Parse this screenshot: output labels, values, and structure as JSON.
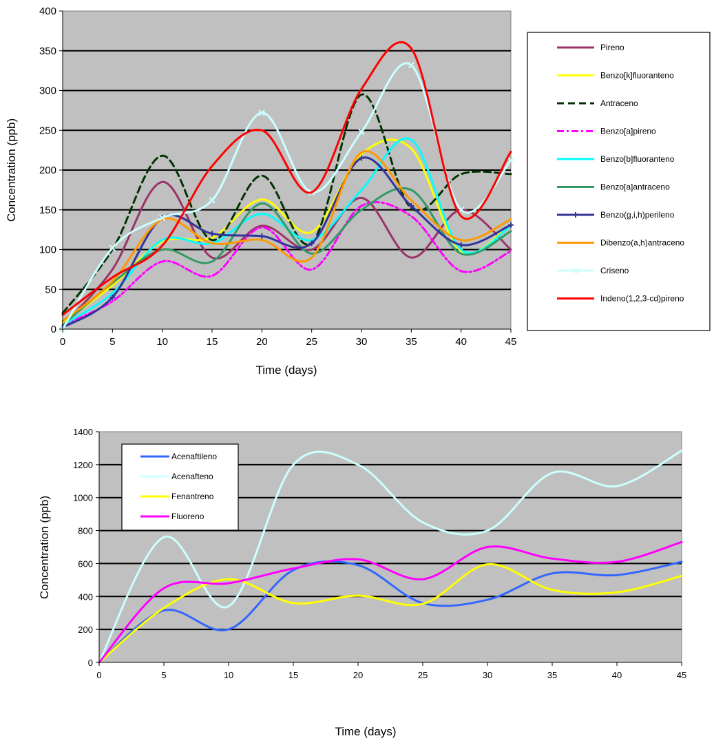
{
  "chart_data": [
    {
      "type": "line",
      "title": "",
      "xlabel": "Time (days)",
      "ylabel": "Concentration (ppb)",
      "xlim": [
        0,
        45
      ],
      "ylim": [
        0,
        400
      ],
      "x_ticks": [
        "0",
        "5",
        "10",
        "15",
        "20",
        "25",
        "30",
        "35",
        "40",
        "45"
      ],
      "y_ticks": [
        "0",
        "50",
        "100",
        "150",
        "200",
        "250",
        "300",
        "350",
        "400"
      ],
      "grid": true,
      "legend_position": "right",
      "plot_background": "#c0c0c0",
      "x": [
        0,
        5,
        10,
        15,
        20,
        25,
        30,
        35,
        40,
        45
      ],
      "series": [
        {
          "name": "Pireno",
          "color": "#993366",
          "dash": "solid",
          "marker": "none",
          "values": [
            5,
            75,
            185,
            90,
            130,
            100,
            165,
            90,
            150,
            100
          ]
        },
        {
          "name": "Benzo[k]fluoranteno",
          "color": "#ffff00",
          "dash": "solid",
          "marker": "none",
          "values": [
            8,
            55,
            110,
            115,
            163,
            122,
            220,
            227,
            98,
            133
          ]
        },
        {
          "name": "Antraceno",
          "color": "#003300",
          "dash": "dash",
          "marker": "none",
          "values": [
            20,
            100,
            218,
            112,
            193,
            108,
            295,
            152,
            195,
            195
          ]
        },
        {
          "name": "Benzo[a]pireno",
          "color": "#ff00ff",
          "dash": "dashdot",
          "marker": "none",
          "values": [
            5,
            35,
            85,
            67,
            128,
            75,
            155,
            142,
            73,
            98
          ]
        },
        {
          "name": "Benzo[b]fluoranteno",
          "color": "#00ffff",
          "dash": "solid",
          "marker": "none",
          "values": [
            5,
            45,
            112,
            108,
            145,
            112,
            175,
            238,
            100,
            130
          ]
        },
        {
          "name": "Benzo[a]antraceno",
          "color": "#339966",
          "dash": "solid",
          "marker": "none",
          "values": [
            5,
            58,
            100,
            85,
            158,
            95,
            150,
            175,
            95,
            123
          ]
        },
        {
          "name": "Benzo(g,i,h)perileno",
          "color": "#333399",
          "dash": "solid",
          "marker": "plus",
          "values": [
            2,
            40,
            140,
            120,
            117,
            108,
            215,
            155,
            106,
            131
          ]
        },
        {
          "name": "Dibenzo(a,h)antraceno",
          "color": "#ff9900",
          "dash": "solid",
          "marker": "none",
          "values": [
            10,
            60,
            138,
            108,
            112,
            90,
            222,
            162,
            112,
            138
          ]
        },
        {
          "name": "Criseno",
          "color": "#ccffff",
          "dash": "solid",
          "marker": "x",
          "values": [
            0,
            102,
            140,
            162,
            272,
            172,
            248,
            332,
            150,
            212
          ]
        },
        {
          "name": "Indeno(1,2,3-cd)pireno",
          "color": "#ff0000",
          "dash": "solid",
          "marker": "none",
          "values": [
            18,
            65,
            105,
            205,
            250,
            172,
            302,
            353,
            142,
            223
          ]
        }
      ]
    },
    {
      "type": "line",
      "title": "",
      "xlabel": "Time (days)",
      "ylabel": "Concentration (ppb)",
      "xlim": [
        0,
        45
      ],
      "ylim": [
        0,
        1400
      ],
      "x_ticks": [
        "0",
        "5",
        "10",
        "15",
        "20",
        "25",
        "30",
        "35",
        "40",
        "45"
      ],
      "y_ticks": [
        "0",
        "200",
        "400",
        "600",
        "800",
        "1000",
        "1200",
        "1400"
      ],
      "grid": true,
      "legend_position": "top-left",
      "plot_background": "#c0c0c0",
      "x": [
        0,
        5,
        10,
        15,
        20,
        25,
        30,
        35,
        40,
        45
      ],
      "series": [
        {
          "name": "Acenaftileno",
          "color": "#3366ff",
          "dash": "solid",
          "marker": "none",
          "values": [
            0,
            315,
            200,
            560,
            590,
            360,
            380,
            540,
            530,
            610
          ]
        },
        {
          "name": "Acenafteno",
          "color": "#ccffff",
          "dash": "solid",
          "marker": "none",
          "values": [
            0,
            760,
            340,
            1200,
            1200,
            850,
            800,
            1150,
            1070,
            1285
          ]
        },
        {
          "name": "Fenantreno",
          "color": "#ffff00",
          "dash": "solid",
          "marker": "none",
          "values": [
            0,
            330,
            505,
            360,
            405,
            355,
            595,
            440,
            425,
            525
          ]
        },
        {
          "name": "Fluoreno",
          "color": "#ff00ff",
          "dash": "solid",
          "marker": "none",
          "values": [
            0,
            450,
            480,
            570,
            625,
            505,
            700,
            630,
            610,
            730
          ]
        }
      ]
    }
  ]
}
